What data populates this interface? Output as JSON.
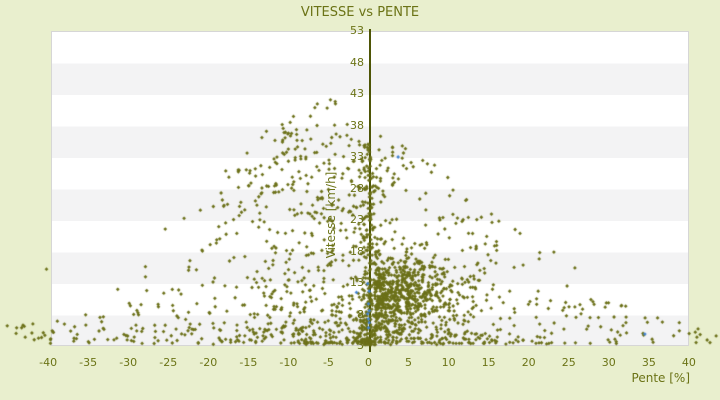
{
  "header": {
    "title": "VITESSE vs PENTE"
  },
  "colors": {
    "page_background": "#E9EFCE",
    "plot_background": "#FFFFFF",
    "band_gray": "#F3F3F4",
    "plot_border": "#D6D6D6",
    "text_olive": "#6B7316",
    "axis_line": "#4E5506",
    "point_olive": "#6B7018",
    "point_blue": "#4484D0"
  },
  "chart_data": {
    "type": "scatter",
    "title": "VITESSE vs PENTE",
    "xlabel": "Pente [%]",
    "ylabel": "Vitesse [km/h]",
    "xlim": [
      -40,
      40
    ],
    "ylim": [
      3,
      53
    ],
    "x_ticks": [
      -40,
      -35,
      -30,
      -25,
      -20,
      -15,
      -10,
      -5,
      0,
      5,
      10,
      15,
      20,
      25,
      30,
      35,
      40
    ],
    "y_ticks": [
      53,
      48,
      43,
      38,
      33,
      28,
      23,
      18,
      13,
      8,
      3
    ],
    "grid": "alternating-horizontal-bands-every-5-units",
    "legend": "none",
    "axis_zero_line": "vertical-dark-olive-at-x-0",
    "marker": "diamond-3px",
    "series": [
      {
        "name": "serie-principale-vitesse",
        "color": "#6B7018",
        "approx_count": 2000,
        "shape_summary": "triangular cloud: apex ~43 km/h near pente -5, spreading to +/-40% at low speed; very dense blob for pente 1..15 at 6..18 km/h; dense column along pente 0",
        "generator": {
          "seed": 1337,
          "components": [
            {
              "n": 500,
              "x": {
                "dist": "hn",
                "shift": -0.5,
                "scale": -11.5,
                "min": -41,
                "max": -0.5
              },
              "y": {
                "env": {
                  "base": 3.4,
                  "pow": 1.6,
                  "apexX": -5,
                  "apexY": 43,
                  "slope": 1.05
                }
              }
            },
            {
              "n": 280,
              "x": {
                "dist": "n",
                "mean": 0,
                "sd": 0.6,
                "min": -2,
                "max": 2
              },
              "y": {
                "env": {
                  "base": 3.2,
                  "pow": 1.7,
                  "apexX": 0,
                  "apexY": 36,
                  "slope": 2
                }
              }
            },
            {
              "n": 650,
              "x": {
                "dist": "hn",
                "shift": 0.8,
                "scale": 4.8,
                "min": 0.8,
                "max": 18
              },
              "y": {
                "dist": "n",
                "mean": 11,
                "sd": 3.2,
                "min": 4.2,
                "max": 20
              }
            },
            {
              "n": 330,
              "x": {
                "dist": "hn",
                "shift": 0.5,
                "scale": 13,
                "min": 0.5,
                "max": 40
              },
              "y": {
                "env": {
                  "base": 3.4,
                  "pow": 1.9,
                  "apexX": 0,
                  "apexY": 40,
                  "slope": 0.95
                }
              }
            },
            {
              "n": 70,
              "x": {
                "dist": "n",
                "mean": -9,
                "sd": 7,
                "min": -30,
                "max": 3
              },
              "y": {
                "env": {
                  "base": 24,
                  "pow": 1.0,
                  "apexX": -6,
                  "apexY": 44,
                  "slope": 1.0
                }
              }
            },
            {
              "n": 45,
              "x": {
                "dist": "u",
                "lo": -44,
                "hi": -24
              },
              "y": {
                "env": {
                  "base": 3.4,
                  "pow": 1.3,
                  "apexX": -24,
                  "apexY": 14,
                  "slope": 0.35
                }
              }
            },
            {
              "n": 40,
              "x": {
                "dist": "u",
                "lo": 24,
                "hi": 43
              },
              "y": {
                "env": {
                  "base": 3.4,
                  "pow": 1.3,
                  "apexX": 24,
                  "apexY": 12,
                  "slope": 0.3
                }
              }
            },
            {
              "n": 120,
              "x": {
                "dist": "n",
                "mean": -4,
                "sd": 14,
                "min": -40,
                "max": 40
              },
              "y": {
                "dist": "u",
                "lo": 3.2,
                "hi": 6
              }
            }
          ]
        },
        "explicit_points": [
          [
            -45.1,
            6.2
          ],
          [
            -43.3,
            5.9
          ],
          [
            -41.9,
            6.5
          ],
          [
            -40.6,
            5.1
          ],
          [
            -40.4,
            4.7
          ],
          [
            -40.2,
            15.2
          ],
          [
            40.8,
            5.2
          ],
          [
            41.0,
            4.4
          ],
          [
            43.4,
            4.6
          ]
        ]
      },
      {
        "name": "serie-secondaire",
        "color": "#4484D0",
        "points": [
          [
            -0.1,
            12.9
          ],
          [
            0.1,
            11.7
          ],
          [
            0.0,
            9.7
          ],
          [
            0.1,
            8.6
          ],
          [
            -0.1,
            8.1
          ],
          [
            0.0,
            7.3
          ],
          [
            0.1,
            6.7
          ],
          [
            0.0,
            5.9
          ],
          [
            -1.5,
            11.5
          ],
          [
            3.7,
            33.0
          ],
          [
            34.5,
            4.9
          ]
        ]
      }
    ]
  }
}
